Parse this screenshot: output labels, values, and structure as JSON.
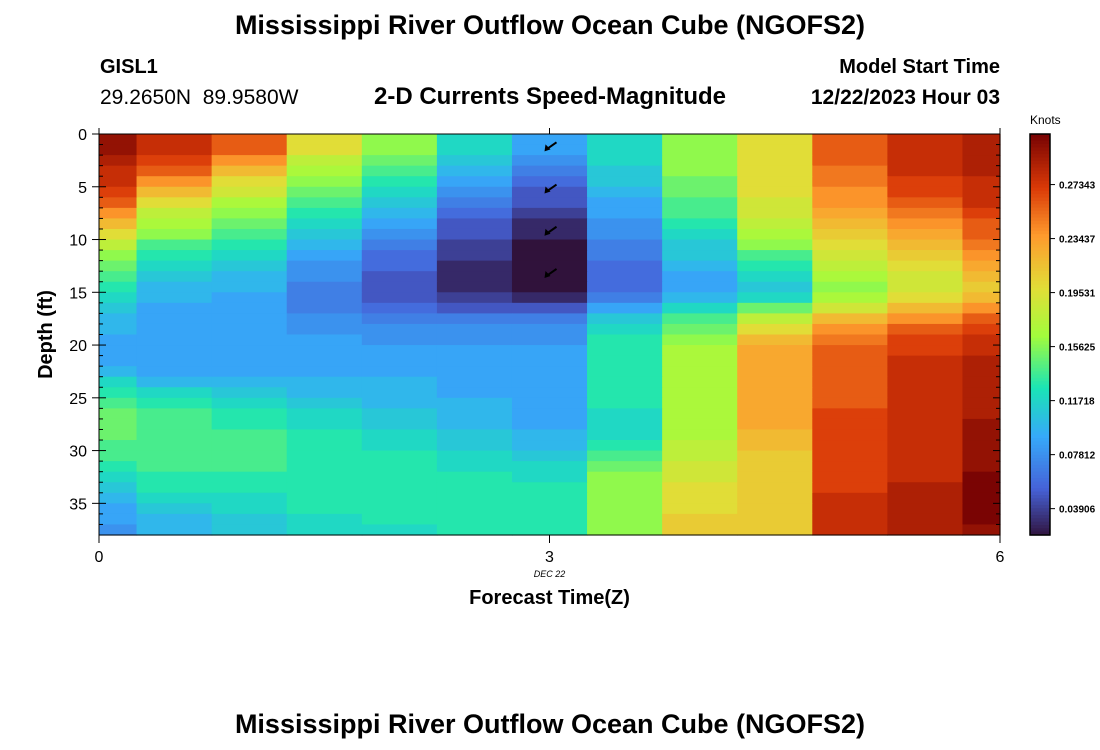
{
  "title": "Mississippi River Outflow Ocean Cube (NGOFS2)",
  "station": {
    "id": "GISL1",
    "coords": "29.2650N  89.9580W"
  },
  "model": {
    "label": "Model Start Time",
    "value": "12/22/2023 Hour 03"
  },
  "chart_data": {
    "type": "heatmap",
    "title": "2-D Currents Speed-Magnitude",
    "xlabel": "Forecast Time(Z)",
    "ylabel": "Depth (ft)",
    "xlim": [
      0,
      6
    ],
    "ylim": [
      38,
      0
    ],
    "x_ticks": [
      0,
      3,
      6
    ],
    "x_tick_labels": [
      "0",
      "3",
      "6"
    ],
    "x_date_label": "DEC 22",
    "y_ticks": [
      0,
      5,
      10,
      15,
      20,
      25,
      30,
      35
    ],
    "colorbar": {
      "unit": "Knots",
      "min": 0.02,
      "max": 0.31,
      "ticks": [
        0.03906,
        0.07812,
        0.11718,
        0.15625,
        0.19531,
        0.23437,
        0.27343
      ],
      "tick_labels": [
        "0.03906",
        "0.07812",
        "0.11718",
        "0.15625",
        "0.19531",
        "0.23437",
        "0.27343"
      ]
    },
    "time_edges": [
      0,
      0.25,
      0.75,
      1.25,
      1.75,
      2.25,
      2.75,
      3.25,
      3.75,
      4.25,
      4.75,
      5.25,
      5.75,
      6
    ],
    "depth_rows": 38,
    "depth_max": 38,
    "cells": [
      [
        0.3,
        0.28,
        0.26,
        0.2,
        0.16,
        0.12,
        0.09,
        0.12,
        0.16,
        0.2,
        0.26,
        0.28,
        0.29
      ],
      [
        0.3,
        0.28,
        0.26,
        0.2,
        0.16,
        0.12,
        0.09,
        0.12,
        0.16,
        0.2,
        0.26,
        0.28,
        0.29
      ],
      [
        0.29,
        0.27,
        0.24,
        0.18,
        0.15,
        0.11,
        0.08,
        0.12,
        0.16,
        0.2,
        0.26,
        0.28,
        0.29
      ],
      [
        0.28,
        0.26,
        0.22,
        0.17,
        0.14,
        0.1,
        0.07,
        0.11,
        0.16,
        0.2,
        0.25,
        0.28,
        0.29
      ],
      [
        0.28,
        0.24,
        0.2,
        0.16,
        0.13,
        0.09,
        0.06,
        0.11,
        0.15,
        0.2,
        0.25,
        0.27,
        0.28
      ],
      [
        0.27,
        0.22,
        0.19,
        0.15,
        0.12,
        0.08,
        0.05,
        0.1,
        0.15,
        0.2,
        0.24,
        0.27,
        0.28
      ],
      [
        0.26,
        0.2,
        0.17,
        0.14,
        0.11,
        0.07,
        0.05,
        0.09,
        0.14,
        0.19,
        0.24,
        0.26,
        0.28
      ],
      [
        0.24,
        0.18,
        0.16,
        0.13,
        0.1,
        0.06,
        0.04,
        0.09,
        0.14,
        0.19,
        0.23,
        0.25,
        0.27
      ],
      [
        0.22,
        0.17,
        0.15,
        0.12,
        0.09,
        0.05,
        0.03,
        0.08,
        0.13,
        0.18,
        0.22,
        0.24,
        0.26
      ],
      [
        0.2,
        0.16,
        0.14,
        0.11,
        0.08,
        0.05,
        0.03,
        0.08,
        0.12,
        0.17,
        0.21,
        0.23,
        0.26
      ],
      [
        0.18,
        0.14,
        0.13,
        0.1,
        0.07,
        0.04,
        0.02,
        0.07,
        0.11,
        0.16,
        0.2,
        0.22,
        0.25
      ],
      [
        0.16,
        0.13,
        0.12,
        0.09,
        0.06,
        0.04,
        0.02,
        0.07,
        0.11,
        0.14,
        0.19,
        0.21,
        0.24
      ],
      [
        0.15,
        0.12,
        0.11,
        0.08,
        0.06,
        0.03,
        0.02,
        0.06,
        0.1,
        0.13,
        0.18,
        0.2,
        0.23
      ],
      [
        0.14,
        0.11,
        0.1,
        0.08,
        0.05,
        0.03,
        0.02,
        0.06,
        0.09,
        0.12,
        0.17,
        0.19,
        0.22
      ],
      [
        0.13,
        0.1,
        0.1,
        0.07,
        0.05,
        0.03,
        0.02,
        0.06,
        0.09,
        0.11,
        0.16,
        0.19,
        0.21
      ],
      [
        0.12,
        0.1,
        0.09,
        0.07,
        0.05,
        0.04,
        0.03,
        0.07,
        0.1,
        0.12,
        0.17,
        0.2,
        0.22
      ],
      [
        0.11,
        0.09,
        0.09,
        0.07,
        0.06,
        0.05,
        0.05,
        0.09,
        0.12,
        0.15,
        0.19,
        0.22,
        0.24
      ],
      [
        0.1,
        0.09,
        0.09,
        0.08,
        0.07,
        0.07,
        0.07,
        0.11,
        0.14,
        0.18,
        0.22,
        0.24,
        0.26
      ],
      [
        0.1,
        0.09,
        0.09,
        0.08,
        0.08,
        0.08,
        0.08,
        0.12,
        0.15,
        0.2,
        0.24,
        0.26,
        0.27
      ],
      [
        0.09,
        0.09,
        0.09,
        0.09,
        0.08,
        0.08,
        0.08,
        0.13,
        0.16,
        0.22,
        0.25,
        0.27,
        0.28
      ],
      [
        0.09,
        0.09,
        0.09,
        0.09,
        0.09,
        0.09,
        0.09,
        0.13,
        0.17,
        0.23,
        0.26,
        0.27,
        0.28
      ],
      [
        0.09,
        0.09,
        0.09,
        0.09,
        0.09,
        0.09,
        0.09,
        0.13,
        0.17,
        0.23,
        0.26,
        0.28,
        0.29
      ],
      [
        0.1,
        0.09,
        0.09,
        0.09,
        0.09,
        0.09,
        0.09,
        0.13,
        0.17,
        0.23,
        0.26,
        0.28,
        0.29
      ],
      [
        0.12,
        0.1,
        0.1,
        0.1,
        0.1,
        0.09,
        0.09,
        0.13,
        0.17,
        0.23,
        0.26,
        0.28,
        0.29
      ],
      [
        0.13,
        0.12,
        0.11,
        0.1,
        0.1,
        0.09,
        0.09,
        0.13,
        0.17,
        0.23,
        0.26,
        0.28,
        0.29
      ],
      [
        0.14,
        0.13,
        0.12,
        0.11,
        0.1,
        0.1,
        0.09,
        0.13,
        0.17,
        0.23,
        0.26,
        0.28,
        0.29
      ],
      [
        0.15,
        0.14,
        0.13,
        0.12,
        0.11,
        0.1,
        0.09,
        0.12,
        0.17,
        0.23,
        0.27,
        0.28,
        0.29
      ],
      [
        0.15,
        0.14,
        0.13,
        0.12,
        0.11,
        0.1,
        0.09,
        0.12,
        0.17,
        0.23,
        0.27,
        0.28,
        0.3
      ],
      [
        0.15,
        0.14,
        0.14,
        0.13,
        0.12,
        0.11,
        0.1,
        0.12,
        0.17,
        0.22,
        0.27,
        0.28,
        0.3
      ],
      [
        0.14,
        0.14,
        0.14,
        0.13,
        0.12,
        0.11,
        0.1,
        0.13,
        0.18,
        0.22,
        0.27,
        0.28,
        0.3
      ],
      [
        0.14,
        0.14,
        0.14,
        0.13,
        0.13,
        0.12,
        0.11,
        0.14,
        0.18,
        0.21,
        0.27,
        0.28,
        0.3
      ],
      [
        0.13,
        0.14,
        0.14,
        0.13,
        0.13,
        0.12,
        0.12,
        0.15,
        0.19,
        0.21,
        0.27,
        0.28,
        0.3
      ],
      [
        0.12,
        0.13,
        0.13,
        0.13,
        0.13,
        0.13,
        0.12,
        0.16,
        0.19,
        0.21,
        0.27,
        0.28,
        0.31
      ],
      [
        0.11,
        0.13,
        0.13,
        0.13,
        0.13,
        0.13,
        0.13,
        0.16,
        0.2,
        0.21,
        0.27,
        0.29,
        0.31
      ],
      [
        0.1,
        0.12,
        0.12,
        0.13,
        0.13,
        0.13,
        0.13,
        0.16,
        0.2,
        0.21,
        0.28,
        0.29,
        0.31
      ],
      [
        0.09,
        0.11,
        0.12,
        0.13,
        0.13,
        0.13,
        0.13,
        0.16,
        0.2,
        0.21,
        0.28,
        0.29,
        0.31
      ],
      [
        0.09,
        0.1,
        0.11,
        0.12,
        0.13,
        0.13,
        0.13,
        0.16,
        0.21,
        0.21,
        0.28,
        0.29,
        0.31
      ],
      [
        0.08,
        0.1,
        0.11,
        0.12,
        0.12,
        0.13,
        0.13,
        0.16,
        0.21,
        0.21,
        0.28,
        0.29,
        0.3
      ]
    ],
    "vectors": [
      {
        "time": 3,
        "depth": 0.6
      },
      {
        "time": 3,
        "depth": 4.6
      },
      {
        "time": 3,
        "depth": 8.6
      },
      {
        "time": 3,
        "depth": 12.6
      }
    ]
  }
}
